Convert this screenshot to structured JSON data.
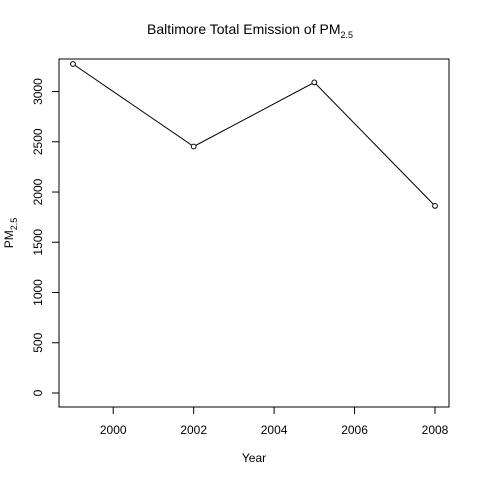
{
  "chart_data": {
    "type": "line",
    "title": "Baltimore Total Emission of PM",
    "title_subscript": "2.5",
    "xlabel": "Year",
    "ylabel": "PM",
    "ylabel_subscript": "2.5",
    "x": [
      1999,
      2002,
      2005,
      2008
    ],
    "series": [
      {
        "values": [
          3274,
          2453,
          3091,
          1862
        ]
      }
    ],
    "xlim": [
      1999,
      2008
    ],
    "ylim": [
      0,
      3274
    ],
    "xticks": [
      "2000",
      "2002",
      "2004",
      "2006",
      "2008"
    ],
    "yticks": [
      "0",
      "500",
      "1000",
      "1500",
      "2000",
      "2500",
      "3000"
    ],
    "grid": false,
    "line_color": "#000000",
    "marker": "open-circle"
  }
}
